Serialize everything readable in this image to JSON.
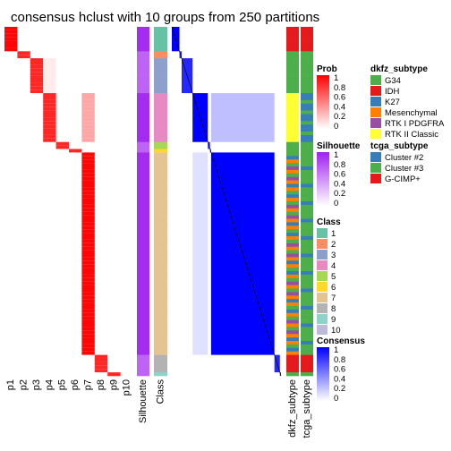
{
  "chart_data": {
    "type": "heatmap",
    "title": "consensus hclust with 10 groups from 250 partitions",
    "n_samples": 100,
    "prob_columns": [
      "p1",
      "p2",
      "p3",
      "p4",
      "p5",
      "p6",
      "p7",
      "p8",
      "p9",
      "p10"
    ],
    "extra_columns": [
      "Silhouette",
      "Class"
    ],
    "annotation_columns": [
      "dkfz_subtype",
      "tcga_subtype"
    ],
    "groups": [
      {
        "class": 1,
        "n": 7
      },
      {
        "class": 2,
        "n": 2
      },
      {
        "class": 3,
        "n": 10
      },
      {
        "class": 4,
        "n": 14
      },
      {
        "class": 5,
        "n": 2
      },
      {
        "class": 6,
        "n": 1
      },
      {
        "class": 7,
        "n": 58
      },
      {
        "class": 8,
        "n": 5
      },
      {
        "class": 9,
        "n": 1
      }
    ],
    "legends": {
      "prob": {
        "title": "Prob",
        "ticks": [
          "1",
          "0.8",
          "0.6",
          "0.4",
          "0.2",
          "0"
        ]
      },
      "silhouette": {
        "title": "Silhouette",
        "ticks": [
          "1",
          "0.8",
          "0.6",
          "0.4",
          "0.2",
          "0"
        ]
      },
      "class": {
        "title": "Class",
        "entries": [
          {
            "label": "1",
            "color": "#66C2A5"
          },
          {
            "label": "2",
            "color": "#FC8D62"
          },
          {
            "label": "3",
            "color": "#8DA0CB"
          },
          {
            "label": "4",
            "color": "#E78AC3"
          },
          {
            "label": "5",
            "color": "#A6D854"
          },
          {
            "label": "6",
            "color": "#FFD92F"
          },
          {
            "label": "7",
            "color": "#E5C494"
          },
          {
            "label": "8",
            "color": "#B3B3B3"
          },
          {
            "label": "9",
            "color": "#8DD3C7"
          },
          {
            "label": "10",
            "color": "#BEBADA"
          }
        ]
      },
      "consensus": {
        "title": "Consensus",
        "ticks": [
          "1",
          "0.8",
          "0.6",
          "0.4",
          "0.2",
          "0"
        ]
      },
      "dkfz_subtype": {
        "title": "dkfz_subtype",
        "entries": [
          {
            "label": "G34",
            "color": "#4DAF4A"
          },
          {
            "label": "IDH",
            "color": "#E41A1C"
          },
          {
            "label": "K27",
            "color": "#377EB8"
          },
          {
            "label": "Mesenchymal",
            "color": "#FF7F00"
          },
          {
            "label": "RTK I PDGFRA",
            "color": "#984EA3"
          },
          {
            "label": "RTK II Classic",
            "color": "#FFFF33"
          }
        ]
      },
      "tcga_subtype": {
        "title": "tcga_subtype",
        "entries": [
          {
            "label": "Cluster #2",
            "color": "#377EB8"
          },
          {
            "label": "Cluster #3",
            "color": "#4DAF4A"
          },
          {
            "label": "G-CIMP+",
            "color": "#E41A1C"
          }
        ]
      }
    }
  }
}
